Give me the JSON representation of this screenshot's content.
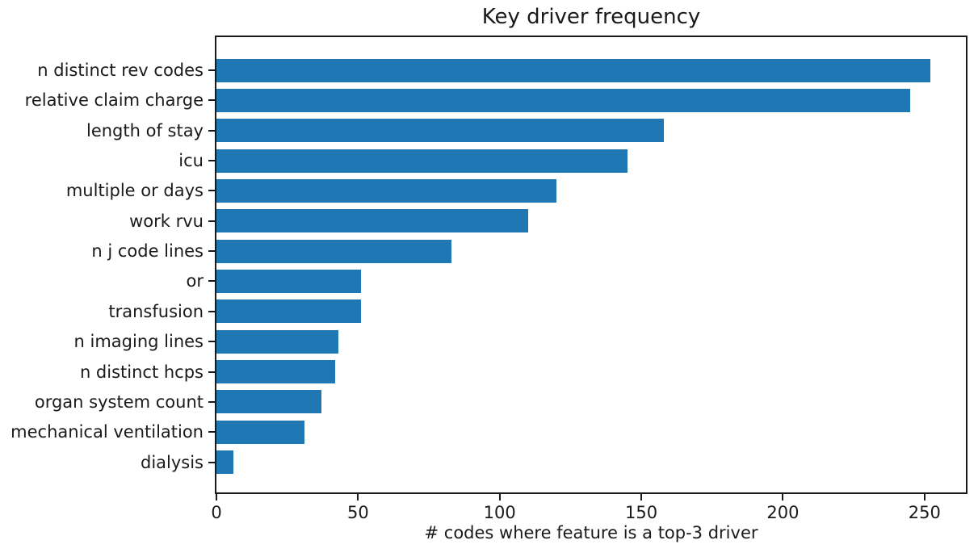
{
  "chart_data": {
    "type": "bar",
    "orientation": "horizontal",
    "title": "Key driver frequency",
    "xlabel": "# codes where feature is a top-3 driver",
    "ylabel": "",
    "categories": [
      "n distinct rev codes",
      "relative claim charge",
      "length of stay",
      "icu",
      "multiple or days",
      "work rvu",
      "n j code lines",
      "or",
      "transfusion",
      "n imaging lines",
      "n distinct hcps",
      "organ system count",
      "mechanical ventilation",
      "dialysis"
    ],
    "values": [
      252,
      245,
      158,
      145,
      120,
      110,
      83,
      51,
      51,
      43,
      42,
      37,
      31,
      6
    ],
    "x_ticks": [
      0,
      50,
      100,
      150,
      200,
      250
    ],
    "xlim": [
      0,
      264.6
    ],
    "bar_color": "#1f77b4",
    "grid": false,
    "legend": null
  }
}
